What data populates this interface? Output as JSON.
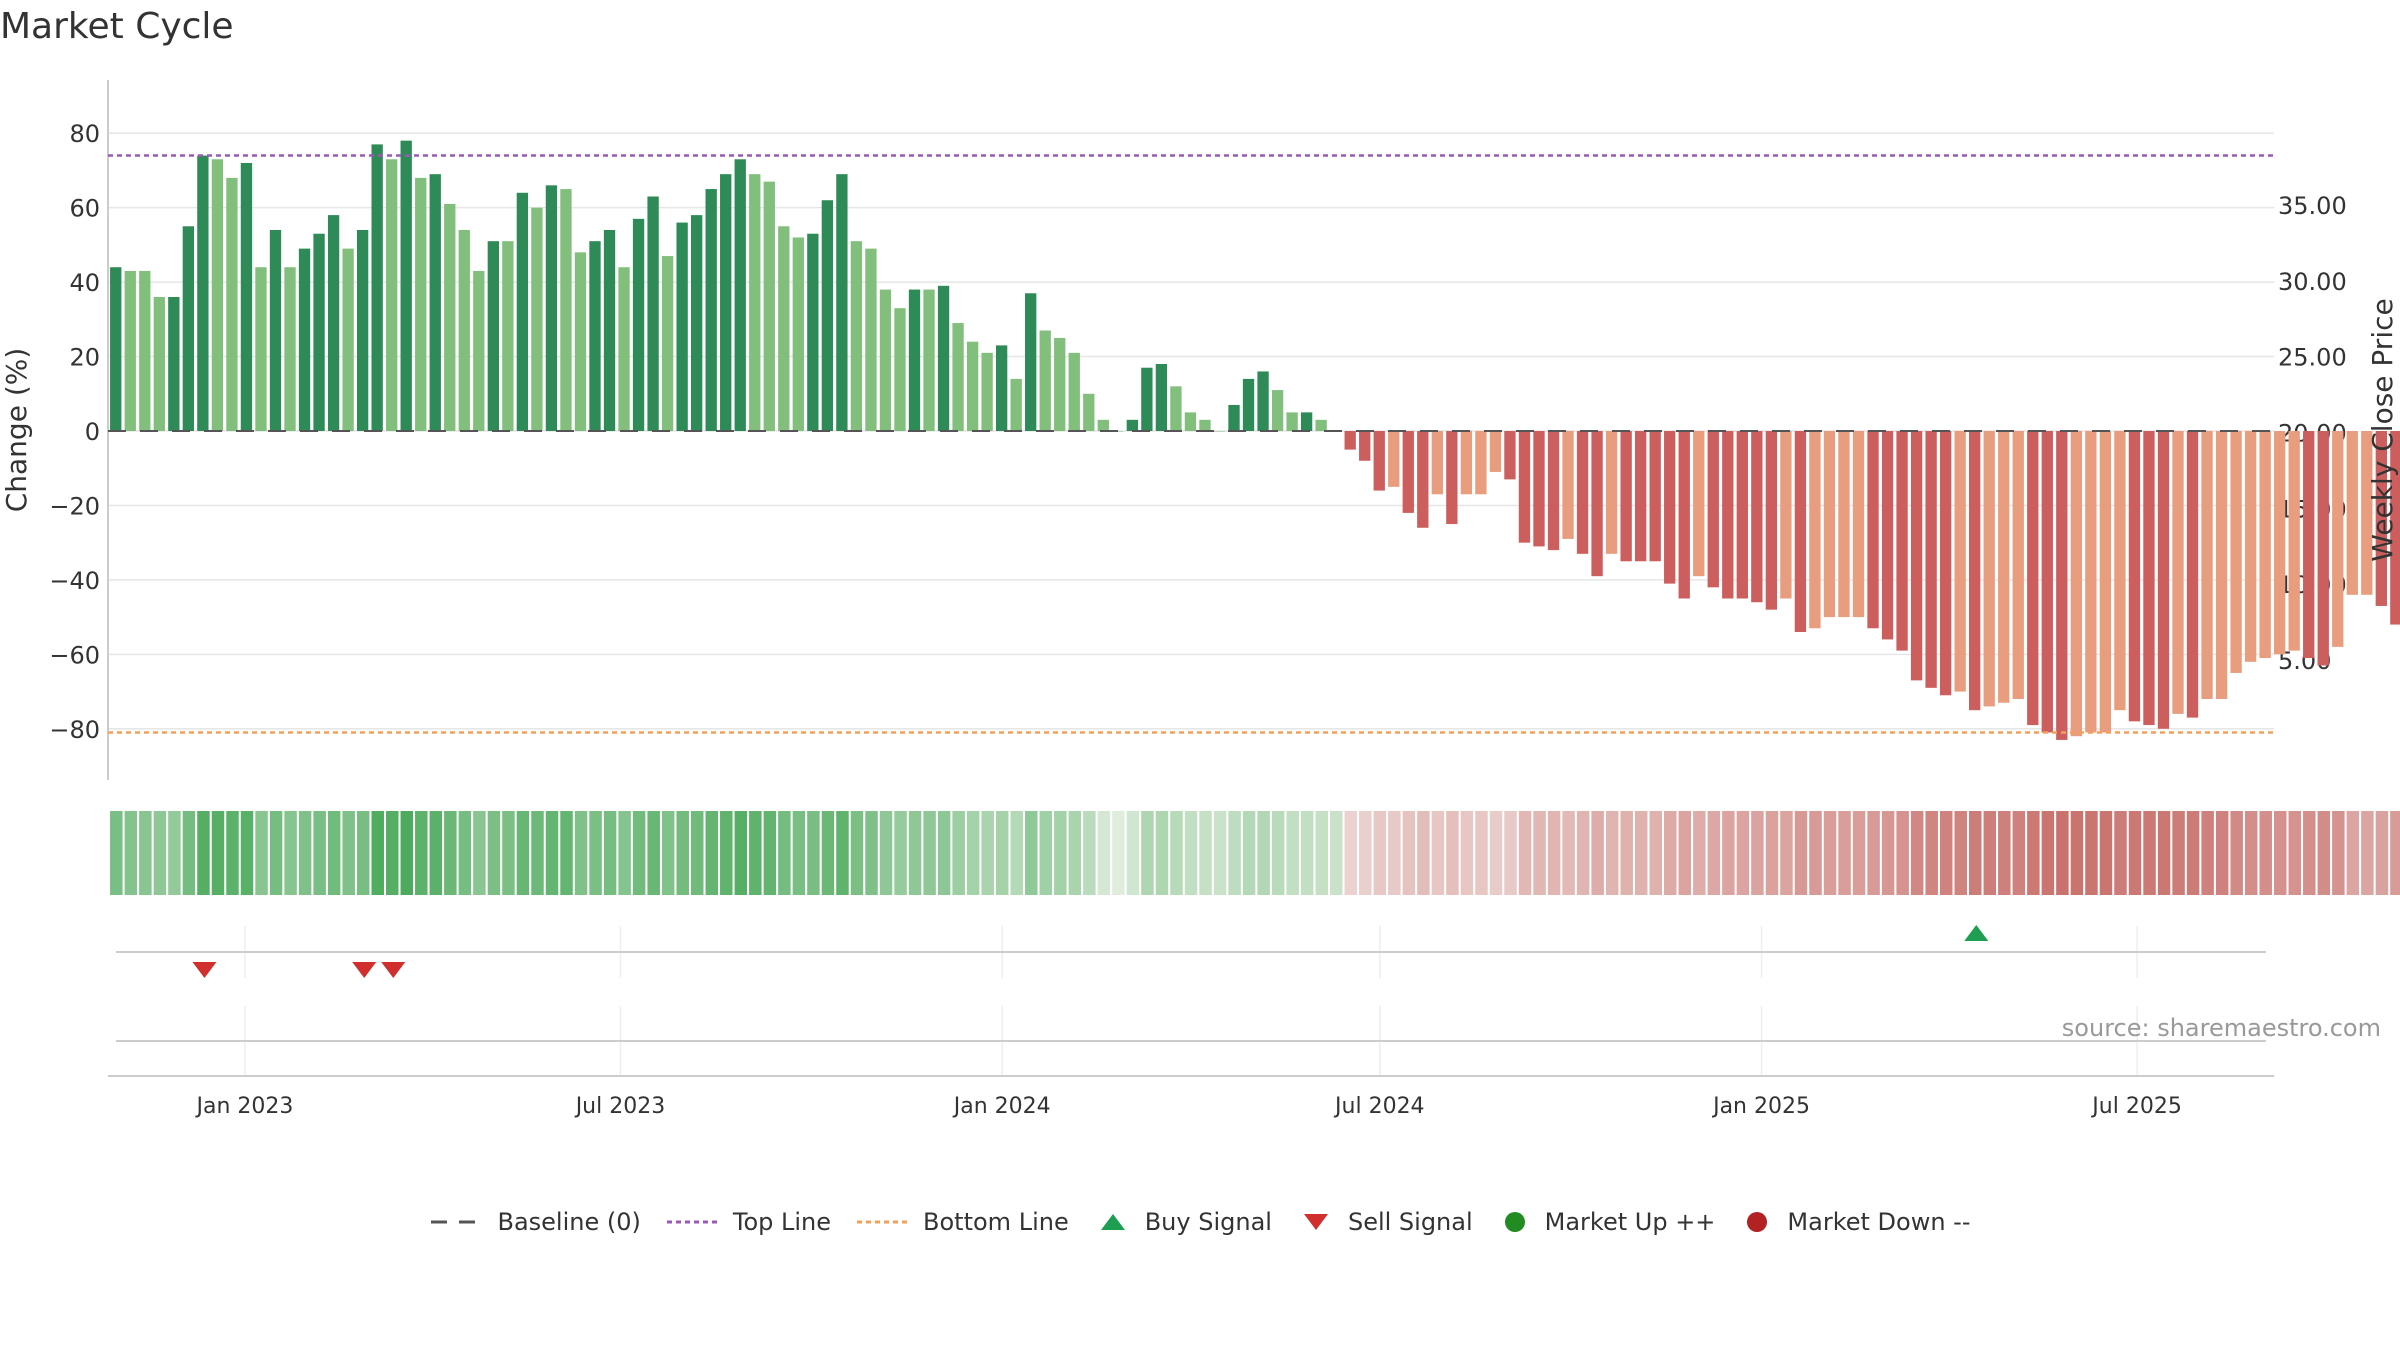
{
  "title": "Market Cycle",
  "source": "source: sharemaestro.com",
  "legend": {
    "baseline": "Baseline (0)",
    "top_line": "Top Line",
    "bottom_line": "Bottom Line",
    "buy": "Buy Signal",
    "sell": "Sell Signal",
    "up": "Market Up ++",
    "down": "Market Down --"
  },
  "colors": {
    "pos_dark": "#2e8b57",
    "pos_light": "#82bf7d",
    "neg_dark": "#cc5e5e",
    "neg_light": "#e89d7f",
    "top_line": "#9b59b6",
    "bottom_line": "#f5a05a",
    "baseline": "#555555",
    "buy": "#1e9e50",
    "sell": "#d12e2e",
    "market_up": "#228b22",
    "market_down": "#b22222"
  },
  "chart_data": {
    "type": "bar",
    "title": "Market Cycle",
    "ylabel": "Change (%)",
    "y2label": "Weekly Close Price",
    "ylim": [
      -90,
      90
    ],
    "yticks": [
      "80",
      "60",
      "40",
      "20",
      "0",
      "−20",
      "−40",
      "−60",
      "−80"
    ],
    "y2ticks": [
      "35.00",
      "30.00",
      "25.00",
      "20.00",
      "15.00",
      "10.00",
      "5.00"
    ],
    "y2lim": [
      -2.0,
      42.2
    ],
    "top_line": 74,
    "bottom_line": -81,
    "baseline": 0,
    "xlim": [
      "2022-10-27",
      "2025-09-05"
    ],
    "x_tick_labels": [
      {
        "date": "2023-01-01",
        "label": "Jan 2023"
      },
      {
        "date": "2023-07-01",
        "label": "Jul 2023"
      },
      {
        "date": "2024-01-01",
        "label": "Jan 2024"
      },
      {
        "date": "2024-07-01",
        "label": "Jul 2024"
      },
      {
        "date": "2025-01-01",
        "label": "Jan 2025"
      },
      {
        "date": "2025-07-01",
        "label": "Jul 2025"
      }
    ],
    "series": [
      {
        "name": "Change (%)",
        "start_date": "2022-10-28",
        "frequency": "weekly",
        "values": [
          44,
          43,
          43,
          36,
          36,
          55,
          74,
          73,
          68,
          72,
          44,
          54,
          44,
          49,
          53,
          58,
          49,
          54,
          77,
          73,
          78,
          68,
          69,
          61,
          54,
          43,
          51,
          51,
          64,
          60,
          66,
          65,
          48,
          51,
          54,
          44,
          57,
          63,
          47,
          56,
          58,
          65,
          69,
          73,
          69,
          67,
          55,
          52,
          53,
          62,
          69,
          51,
          49,
          38,
          33,
          38,
          38,
          39,
          29,
          24,
          21,
          23,
          14,
          37,
          27,
          25,
          21,
          10,
          3,
          0,
          3,
          17,
          18,
          12,
          5,
          3,
          0,
          7,
          14,
          16,
          11,
          5,
          5,
          3,
          0,
          -5,
          -8,
          -16,
          -15,
          -22,
          -26,
          -17,
          -25,
          -17,
          -17,
          -11,
          -13,
          -30,
          -31,
          -32,
          -29,
          -33,
          -39,
          -33,
          -35,
          -35,
          -35,
          -41,
          -45,
          -39,
          -42,
          -45,
          -45,
          -46,
          -48,
          -45,
          -54,
          -53,
          -50,
          -50,
          -50,
          -53,
          -56,
          -59,
          -67,
          -69,
          -71,
          -70,
          -75,
          -74,
          -73,
          -72,
          -79,
          -81,
          -83,
          -82,
          -81,
          -81,
          -75,
          -78,
          -79,
          -80,
          -76,
          -77,
          -72,
          -72,
          -65,
          -62,
          -61,
          -60,
          -59,
          -61,
          -63,
          -58,
          -44,
          -44,
          -47,
          -52,
          -52
        ],
        "shades": [
          1,
          0,
          0,
          0,
          1,
          1,
          1,
          0,
          0,
          1,
          0,
          1,
          0,
          1,
          1,
          1,
          0,
          1,
          1,
          0,
          1,
          0,
          1,
          0,
          0,
          0,
          1,
          0,
          1,
          0,
          1,
          0,
          0,
          1,
          1,
          0,
          1,
          1,
          0,
          1,
          1,
          1,
          1,
          1,
          0,
          0,
          0,
          0,
          1,
          1,
          1,
          0,
          0,
          0,
          0,
          1,
          0,
          1,
          0,
          0,
          0,
          1,
          0,
          1,
          0,
          0,
          0,
          0,
          0,
          0,
          1,
          1,
          1,
          0,
          0,
          0,
          0,
          1,
          1,
          1,
          0,
          0,
          1,
          0,
          0,
          1,
          1,
          1,
          0,
          1,
          1,
          0,
          1,
          0,
          0,
          0,
          1,
          1,
          1,
          1,
          0,
          1,
          1,
          0,
          1,
          1,
          1,
          1,
          1,
          0,
          1,
          1,
          1,
          1,
          1,
          0,
          1,
          0,
          0,
          0,
          0,
          1,
          1,
          1,
          1,
          1,
          1,
          0,
          1,
          0,
          0,
          0,
          1,
          1,
          1,
          0,
          0,
          0,
          0,
          1,
          1,
          1,
          0,
          1,
          0,
          0,
          0,
          0,
          0,
          0,
          0,
          1,
          1,
          0,
          0,
          0,
          1,
          1,
          0
        ]
      }
    ],
    "heat_strip": [
      0.72,
      0.65,
      0.62,
      0.58,
      0.55,
      0.75,
      0.95,
      0.94,
      0.9,
      0.93,
      0.62,
      0.74,
      0.63,
      0.68,
      0.72,
      0.77,
      0.68,
      0.73,
      0.99,
      0.95,
      1.0,
      0.9,
      0.91,
      0.82,
      0.74,
      0.62,
      0.71,
      0.71,
      0.84,
      0.8,
      0.86,
      0.85,
      0.68,
      0.71,
      0.74,
      0.64,
      0.77,
      0.83,
      0.67,
      0.76,
      0.78,
      0.85,
      0.89,
      0.94,
      0.89,
      0.87,
      0.75,
      0.72,
      0.73,
      0.82,
      0.89,
      0.71,
      0.69,
      0.58,
      0.53,
      0.58,
      0.58,
      0.59,
      0.49,
      0.44,
      0.41,
      0.43,
      0.34,
      0.57,
      0.47,
      0.45,
      0.41,
      0.3,
      0.12,
      0.05,
      0.15,
      0.37,
      0.38,
      0.32,
      0.25,
      0.23,
      0.2,
      0.27,
      0.34,
      0.36,
      0.31,
      0.25,
      0.25,
      0.23,
      0.2,
      -0.12,
      -0.14,
      -0.2,
      -0.19,
      -0.24,
      -0.28,
      -0.21,
      -0.27,
      -0.21,
      -0.21,
      -0.17,
      -0.19,
      -0.32,
      -0.33,
      -0.34,
      -0.31,
      -0.35,
      -0.41,
      -0.35,
      -0.37,
      -0.37,
      -0.37,
      -0.43,
      -0.47,
      -0.41,
      -0.44,
      -0.47,
      -0.47,
      -0.48,
      -0.5,
      -0.47,
      -0.56,
      -0.55,
      -0.52,
      -0.52,
      -0.52,
      -0.55,
      -0.58,
      -0.61,
      -0.69,
      -0.71,
      -0.73,
      -0.72,
      -0.77,
      -0.76,
      -0.75,
      -0.74,
      -0.81,
      -0.83,
      -0.85,
      -0.84,
      -0.83,
      -0.83,
      -0.77,
      -0.8,
      -0.81,
      -0.82,
      -0.78,
      -0.79,
      -0.74,
      -0.74,
      -0.67,
      -0.64,
      -0.63,
      -0.62,
      -0.61,
      -0.63,
      -0.65,
      -0.6,
      -0.46,
      -0.46,
      -0.49,
      -0.54,
      -0.54
    ],
    "signals": [
      {
        "type": "sell",
        "date": "2022-12-09"
      },
      {
        "type": "sell",
        "date": "2023-02-24"
      },
      {
        "type": "sell",
        "date": "2023-03-10"
      },
      {
        "type": "buy",
        "date": "2025-04-11"
      }
    ]
  }
}
